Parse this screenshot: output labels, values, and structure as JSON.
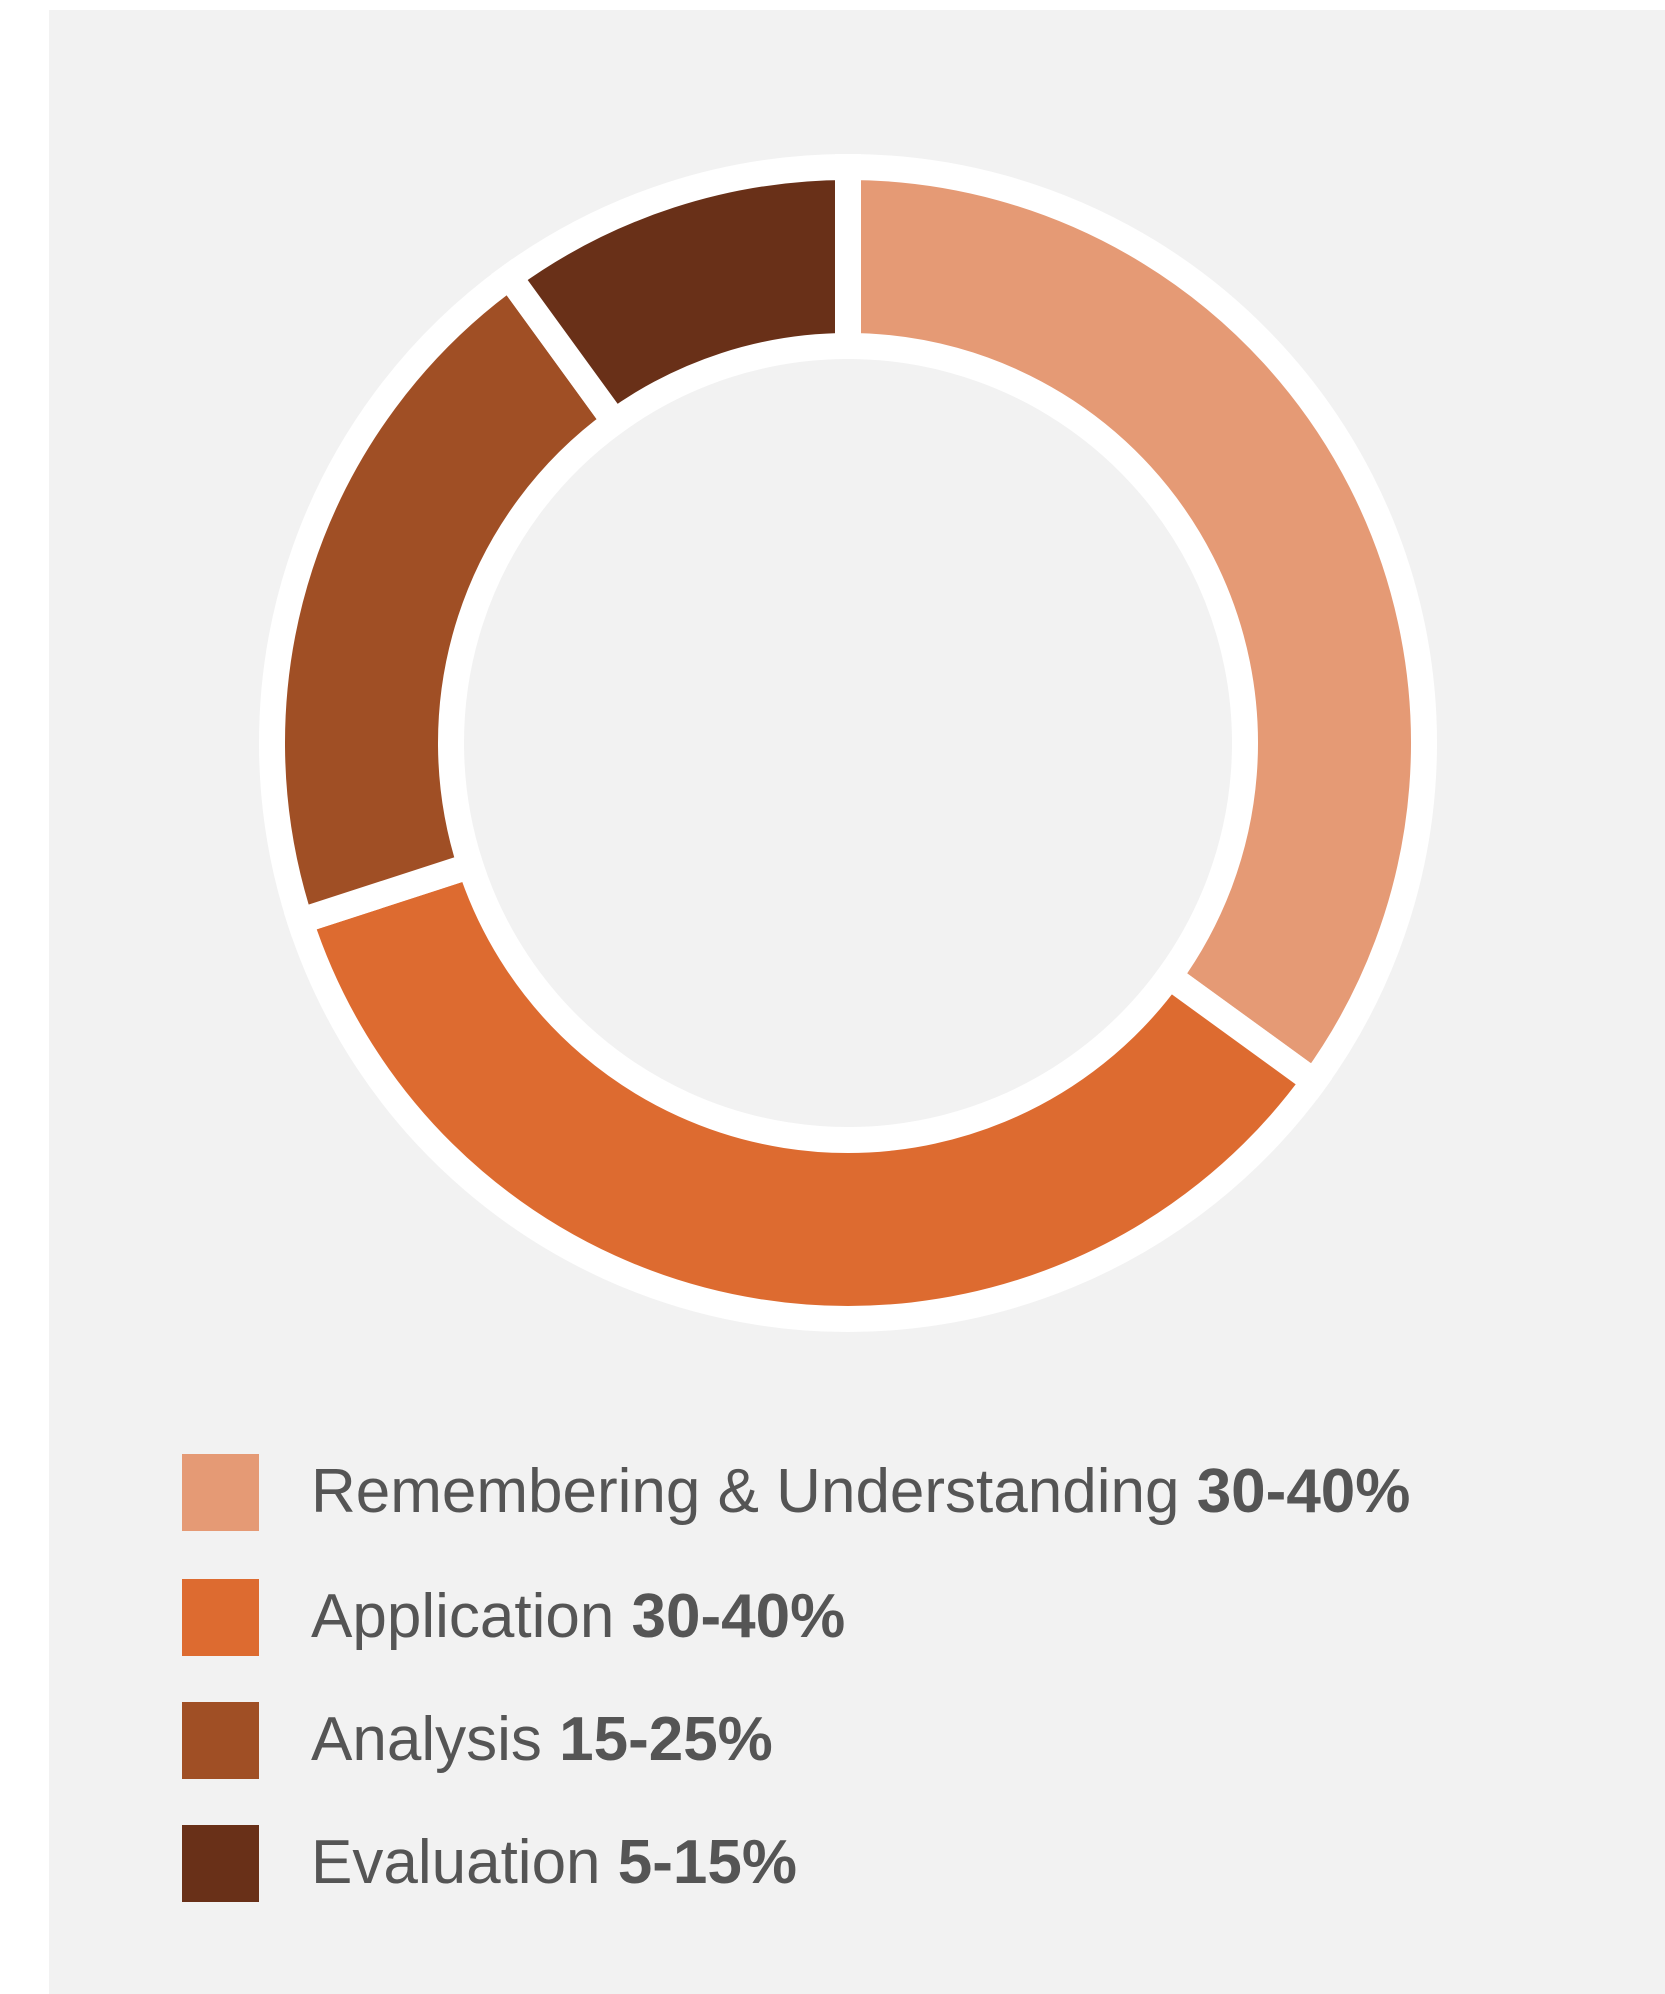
{
  "chart_data": {
    "type": "pie",
    "categories": [
      "Remembering & Understanding",
      "Application",
      "Analysis",
      "Evaluation"
    ],
    "values": [
      35,
      35,
      20,
      10
    ],
    "value_labels": [
      "30-40%",
      "30-40%",
      "15-25%",
      "5-15%"
    ],
    "colors": [
      "#e59a75",
      "#dd6b30",
      "#a04f25",
      "#693018"
    ]
  }
}
